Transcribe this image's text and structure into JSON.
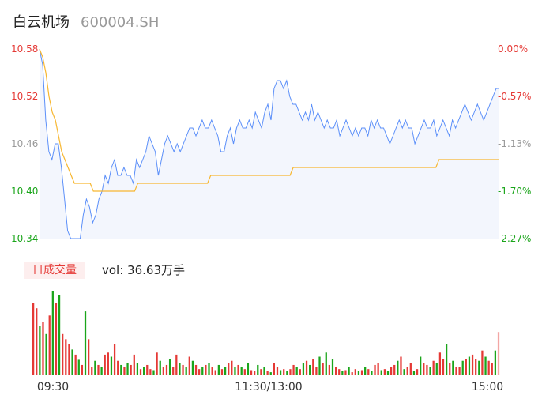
{
  "header": {
    "name": "白云机场",
    "code": "600004.SH"
  },
  "volume_panel": {
    "tab_label": "日成交量",
    "vol_text": "vol: 36.63万手"
  },
  "colors": {
    "price_line": "#5b8ff9",
    "avg_line": "#f7b731",
    "up": "#e53935",
    "down": "#1aa51a",
    "neutral": "#999999",
    "area_fill": "#f3f6fd"
  },
  "chart_data": [
    {
      "type": "line",
      "title": "",
      "xlabel": "",
      "ylabel": "",
      "ylim": [
        10.34,
        10.58
      ],
      "yticks_left": [
        "10.58",
        "10.52",
        "10.46",
        "10.40",
        "10.34"
      ],
      "yticks_right": [
        "0.00%",
        "-0.57%",
        "-1.13%",
        "-1.70%",
        "-2.27%"
      ],
      "xticks": [
        "09:30",
        "11:30/13:00",
        "15:00"
      ],
      "series": [
        {
          "role": "price",
          "values": [
            10.58,
            10.56,
            10.49,
            10.45,
            10.44,
            10.46,
            10.46,
            10.43,
            10.39,
            10.35,
            10.34,
            10.34,
            10.34,
            10.34,
            10.37,
            10.39,
            10.38,
            10.36,
            10.37,
            10.39,
            10.4,
            10.42,
            10.41,
            10.43,
            10.44,
            10.42,
            10.42,
            10.43,
            10.42,
            10.42,
            10.41,
            10.44,
            10.43,
            10.44,
            10.45,
            10.47,
            10.46,
            10.45,
            10.42,
            10.44,
            10.46,
            10.47,
            10.46,
            10.45,
            10.46,
            10.45,
            10.46,
            10.47,
            10.48,
            10.48,
            10.47,
            10.48,
            10.49,
            10.48,
            10.48,
            10.49,
            10.48,
            10.47,
            10.45,
            10.45,
            10.47,
            10.48,
            10.46,
            10.48,
            10.49,
            10.48,
            10.48,
            10.49,
            10.48,
            10.5,
            10.49,
            10.48,
            10.5,
            10.51,
            10.49,
            10.53,
            10.54,
            10.54,
            10.53,
            10.54,
            10.52,
            10.51,
            10.51,
            10.5,
            10.49,
            10.5,
            10.49,
            10.51,
            10.49,
            10.5,
            10.49,
            10.48,
            10.49,
            10.48,
            10.48,
            10.49,
            10.47,
            10.48,
            10.49,
            10.48,
            10.47,
            10.48,
            10.47,
            10.48,
            10.48,
            10.47,
            10.49,
            10.48,
            10.49,
            10.48,
            10.48,
            10.47,
            10.46,
            10.47,
            10.48,
            10.49,
            10.48,
            10.49,
            10.48,
            10.48,
            10.46,
            10.47,
            10.48,
            10.49,
            10.48,
            10.48,
            10.49,
            10.47,
            10.48,
            10.49,
            10.48,
            10.47,
            10.49,
            10.48,
            10.49,
            10.5,
            10.51,
            10.5,
            10.49,
            10.5,
            10.51,
            10.5,
            10.49,
            10.5,
            10.51,
            10.52,
            10.53,
            10.53
          ]
        },
        {
          "role": "average",
          "values": [
            10.58,
            10.57,
            10.55,
            10.52,
            10.5,
            10.49,
            10.47,
            10.45,
            10.44,
            10.43,
            10.42,
            10.41,
            10.41,
            10.41,
            10.41,
            10.41,
            10.41,
            10.4,
            10.4,
            10.4,
            10.4,
            10.4,
            10.4,
            10.4,
            10.4,
            10.4,
            10.4,
            10.4,
            10.4,
            10.4,
            10.4,
            10.41,
            10.41,
            10.41,
            10.41,
            10.41,
            10.41,
            10.41,
            10.41,
            10.41,
            10.41,
            10.41,
            10.41,
            10.41,
            10.41,
            10.41,
            10.41,
            10.41,
            10.41,
            10.41,
            10.41,
            10.41,
            10.41,
            10.41,
            10.42,
            10.42,
            10.42,
            10.42,
            10.42,
            10.42,
            10.42,
            10.42,
            10.42,
            10.42,
            10.42,
            10.42,
            10.42,
            10.42,
            10.42,
            10.42,
            10.42,
            10.42,
            10.42,
            10.42,
            10.42,
            10.42,
            10.42,
            10.42,
            10.42,
            10.42,
            10.43,
            10.43,
            10.43,
            10.43,
            10.43,
            10.43,
            10.43,
            10.43,
            10.43,
            10.43,
            10.43,
            10.43,
            10.43,
            10.43,
            10.43,
            10.43,
            10.43,
            10.43,
            10.43,
            10.43,
            10.43,
            10.43,
            10.43,
            10.43,
            10.43,
            10.43,
            10.43,
            10.43,
            10.43,
            10.43,
            10.43,
            10.43,
            10.43,
            10.43,
            10.43,
            10.43,
            10.43,
            10.43,
            10.43,
            10.43,
            10.43,
            10.43,
            10.43,
            10.43,
            10.43,
            10.43,
            10.44,
            10.44,
            10.44,
            10.44,
            10.44,
            10.44,
            10.44,
            10.44,
            10.44,
            10.44,
            10.44,
            10.44,
            10.44,
            10.44,
            10.44,
            10.44,
            10.44,
            10.44,
            10.44,
            10.44
          ]
        }
      ]
    },
    {
      "type": "bar",
      "title": "",
      "values": [
        70,
        65,
        48,
        52,
        40,
        58,
        82,
        70,
        78,
        40,
        35,
        30,
        25,
        20,
        15,
        10,
        62,
        35,
        8,
        14,
        10,
        8,
        20,
        22,
        18,
        30,
        14,
        10,
        8,
        12,
        10,
        20,
        12,
        6,
        8,
        10,
        6,
        5,
        22,
        14,
        8,
        10,
        16,
        8,
        20,
        12,
        10,
        8,
        18,
        14,
        10,
        6,
        8,
        10,
        12,
        8,
        5,
        10,
        6,
        8,
        12,
        14,
        8,
        10,
        8,
        6,
        12,
        5,
        4,
        10,
        6,
        8,
        4,
        3,
        12,
        8,
        5,
        6,
        4,
        6,
        10,
        8,
        6,
        12,
        14,
        10,
        16,
        8,
        18,
        12,
        22,
        10,
        16,
        8,
        6,
        4,
        5,
        8,
        3,
        6,
        4,
        5,
        8,
        6,
        4,
        10,
        12,
        5,
        6,
        4,
        8,
        10,
        14,
        18,
        6,
        8,
        12,
        4,
        6,
        18,
        12,
        10,
        8,
        14,
        12,
        22,
        16,
        30,
        12,
        14,
        8,
        8,
        14,
        16,
        18,
        20,
        16,
        14,
        24,
        18,
        14,
        12,
        24,
        42
      ],
      "colors": [
        "up",
        "up",
        "down",
        "up",
        "down",
        "up",
        "down",
        "up",
        "down",
        "up",
        "up",
        "up",
        "down",
        "up",
        "down",
        "up",
        "down",
        "up",
        "up",
        "down",
        "up",
        "down",
        "up",
        "up",
        "down",
        "up",
        "up",
        "down",
        "up",
        "down",
        "up",
        "up",
        "down",
        "up",
        "down",
        "up",
        "up",
        "down",
        "up",
        "down",
        "up",
        "up",
        "down",
        "up",
        "up",
        "down",
        "up",
        "down",
        "up",
        "down",
        "up",
        "up",
        "down",
        "up",
        "down",
        "up",
        "up",
        "down",
        "up",
        "down",
        "up",
        "up",
        "down",
        "up",
        "down",
        "up",
        "down",
        "up",
        "up",
        "down",
        "up",
        "down",
        "up",
        "down",
        "up",
        "up",
        "down",
        "up",
        "down",
        "up",
        "up",
        "down",
        "up",
        "down",
        "up",
        "down",
        "up",
        "up",
        "down",
        "up",
        "down",
        "up",
        "down",
        "up",
        "up",
        "down",
        "up",
        "down",
        "up",
        "up",
        "down",
        "up",
        "down",
        "up",
        "down",
        "up",
        "up",
        "down",
        "up",
        "down",
        "up",
        "up",
        "down",
        "up",
        "down",
        "up",
        "up",
        "down",
        "up",
        "down",
        "up",
        "up",
        "down",
        "up",
        "down",
        "up",
        "up",
        "down",
        "up",
        "down",
        "up",
        "up",
        "down",
        "up",
        "down",
        "up",
        "up",
        "down",
        "up",
        "down",
        "up",
        "up",
        "down",
        "up"
      ]
    }
  ]
}
